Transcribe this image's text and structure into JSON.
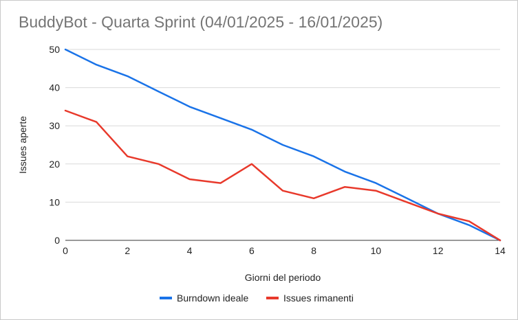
{
  "chart_data": {
    "type": "line",
    "title": "BuddyBot - Quarta Sprint (04/01/2025 - 16/01/2025)",
    "xlabel": "Giorni del periodo",
    "ylabel": "Issues aperte",
    "xlim": [
      0,
      14
    ],
    "ylim": [
      0,
      50
    ],
    "xticks": [
      0,
      2,
      4,
      6,
      8,
      10,
      12,
      14
    ],
    "yticks": [
      0,
      10,
      20,
      30,
      40,
      50
    ],
    "grid": true,
    "legend_position": "bottom",
    "x": [
      0,
      1,
      2,
      3,
      4,
      5,
      6,
      7,
      8,
      9,
      10,
      11,
      12,
      13,
      14
    ],
    "series": [
      {
        "name": "Burndown ideale",
        "color": "#1a73e8",
        "values": [
          50,
          46,
          43,
          39,
          35,
          32,
          29,
          25,
          22,
          18,
          15,
          11,
          7,
          4,
          0
        ]
      },
      {
        "name": "Issues rimanenti",
        "color": "#e8392b",
        "values": [
          34,
          31,
          22,
          20,
          16,
          15,
          20,
          13,
          11,
          14,
          13,
          10,
          7,
          5,
          0
        ]
      }
    ]
  }
}
